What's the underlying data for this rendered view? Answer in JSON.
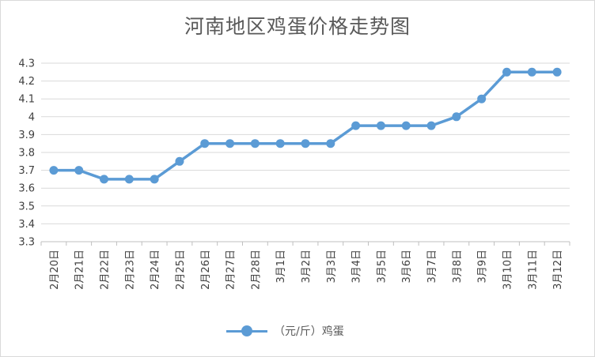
{
  "chart_data": {
    "type": "line",
    "title": "河南地区鸡蛋价格走势图",
    "categories": [
      "2月20日",
      "2月21日",
      "2月22日",
      "2月23日",
      "2月24日",
      "2月25日",
      "2月26日",
      "2月27日",
      "2月28日",
      "3月1日",
      "3月2日",
      "3月3日",
      "3月4日",
      "3月5日",
      "3月6日",
      "3月7日",
      "3月8日",
      "3月9日",
      "3月10日",
      "3月11日",
      "3月12日"
    ],
    "series": [
      {
        "name": "（元/斤）鸡蛋",
        "color": "#5b9bd5",
        "values": [
          3.7,
          3.7,
          3.65,
          3.65,
          3.65,
          3.75,
          3.85,
          3.85,
          3.85,
          3.85,
          3.85,
          3.85,
          3.95,
          3.95,
          3.95,
          3.95,
          4.0,
          4.1,
          4.25,
          4.25,
          4.25
        ]
      }
    ],
    "yticks": [
      "3.3",
      "3.4",
      "3.5",
      "3.6",
      "3.7",
      "3.8",
      "3.9",
      "4",
      "4.1",
      "4.2",
      "4.3"
    ],
    "ylim": [
      3.3,
      4.3
    ],
    "grid": true,
    "legend": "bottom"
  }
}
